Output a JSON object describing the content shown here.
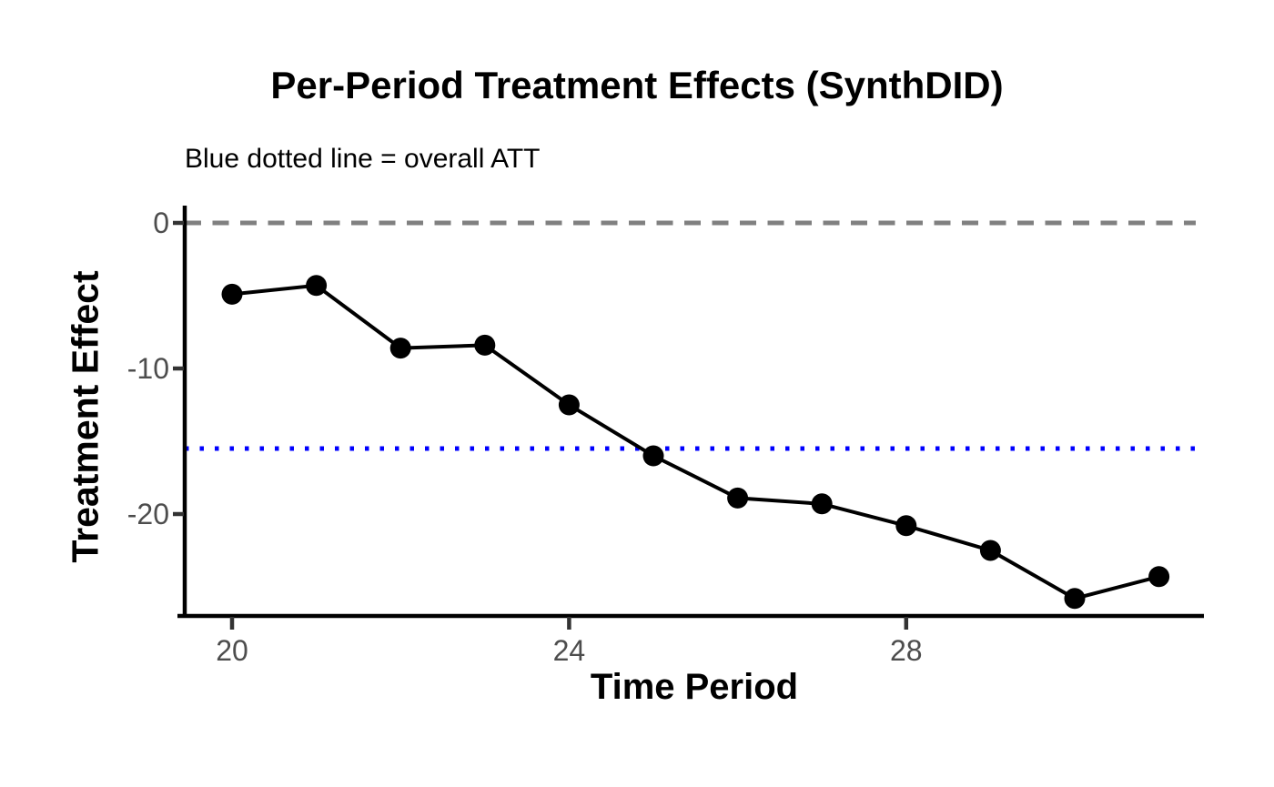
{
  "chart_data": {
    "type": "line",
    "title": "Per-Period Treatment Effects (SynthDID)",
    "subtitle": "Blue dotted line = overall ATT",
    "xlabel": "Time Period",
    "ylabel": "Treatment Effect",
    "x": [
      20,
      21,
      22,
      23,
      24,
      25,
      26,
      27,
      28,
      29,
      30,
      31
    ],
    "series": [
      {
        "name": "per_period_treatment_effect",
        "values": [
          -4.9,
          -4.3,
          -8.6,
          -8.4,
          -12.5,
          -16.0,
          -18.9,
          -19.3,
          -20.8,
          -22.5,
          -25.8,
          -24.3
        ]
      }
    ],
    "reference_lines": [
      {
        "name": "zero-reference-line",
        "value": 0,
        "style": "dashed",
        "color": "#808080"
      },
      {
        "name": "overall-att-line",
        "value": -15.5,
        "style": "dotted",
        "color": "#0000FF"
      }
    ],
    "x_ticks": [
      20,
      24,
      28
    ],
    "y_ticks": [
      0,
      -10,
      -20
    ],
    "xlim": [
      19.45,
      31.55
    ],
    "ylim": [
      -27.0,
      1.1
    ],
    "grid": false,
    "legend_position": "none",
    "point_color": "#000000",
    "line_color": "#000000",
    "axis_text_color": "#4D4D4D",
    "axis_line_color": "#000000",
    "tick_color": "#333333"
  }
}
